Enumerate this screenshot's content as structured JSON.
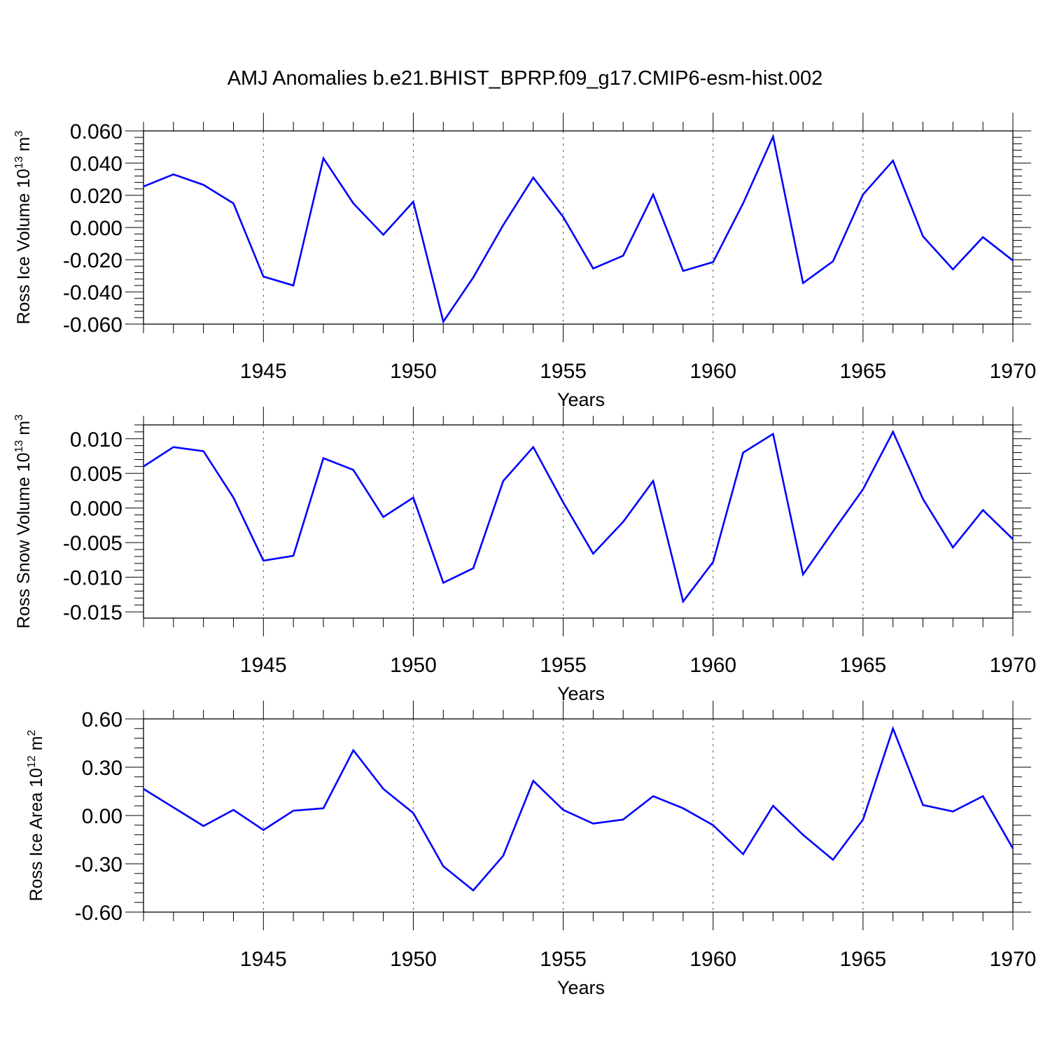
{
  "title": "AMJ Anomalies b.e21.BHIST_BPRP.f09_g17.CMIP6-esm-hist.002",
  "colors": {
    "series": "#0000ff",
    "axis": "#000000",
    "grid": "#555555"
  },
  "chart_data": [
    {
      "type": "line",
      "ylabel": "Ross Ice Volume 10",
      "ylabel_sup": "13",
      "ylabel_unit": " m",
      "ylabel_unit_sup": "3",
      "xlabel": "Years",
      "xlim": [
        1941,
        1970
      ],
      "ylim": [
        -0.06,
        0.06
      ],
      "xticks": [
        1945,
        1950,
        1955,
        1960,
        1965,
        1970
      ],
      "yticks": [
        -0.06,
        -0.04,
        -0.02,
        0.0,
        0.02,
        0.04,
        0.06
      ],
      "ytick_labels": [
        "-0.060",
        "-0.040",
        "-0.020",
        "0.000",
        "0.020",
        "0.040",
        "0.060"
      ],
      "grid": "vertical-dashed",
      "x": [
        1941,
        1942,
        1943,
        1944,
        1945,
        1946,
        1947,
        1948,
        1949,
        1950,
        1951,
        1952,
        1953,
        1954,
        1955,
        1956,
        1957,
        1958,
        1959,
        1960,
        1961,
        1962,
        1963,
        1964,
        1965,
        1966,
        1967,
        1968,
        1969,
        1970
      ],
      "values": [
        0.0255,
        0.033,
        0.0265,
        0.015,
        -0.0305,
        -0.036,
        0.043,
        0.015,
        -0.0045,
        0.016,
        -0.0585,
        -0.031,
        0.0015,
        0.031,
        0.0065,
        -0.0255,
        -0.0175,
        0.0205,
        -0.027,
        -0.0215,
        0.015,
        0.0565,
        -0.0345,
        -0.021,
        0.0205,
        0.0415,
        -0.0055,
        -0.026,
        -0.006,
        -0.0205
      ]
    },
    {
      "type": "line",
      "ylabel": "Ross Snow Volume 10",
      "ylabel_sup": "13",
      "ylabel_unit": " m",
      "ylabel_unit_sup": "3",
      "xlabel": "Years",
      "xlim": [
        1941,
        1970
      ],
      "ylim": [
        -0.0159,
        0.012
      ],
      "xticks": [
        1945,
        1950,
        1955,
        1960,
        1965,
        1970
      ],
      "yticks": [
        -0.015,
        -0.01,
        -0.005,
        0.0,
        0.005,
        0.01
      ],
      "ytick_labels": [
        "-0.015",
        "-0.010",
        "-0.005",
        "0.000",
        "0.005",
        "0.010"
      ],
      "grid": "vertical-dashed",
      "x": [
        1941,
        1942,
        1943,
        1944,
        1945,
        1946,
        1947,
        1948,
        1949,
        1950,
        1951,
        1952,
        1953,
        1954,
        1955,
        1956,
        1957,
        1958,
        1959,
        1960,
        1961,
        1962,
        1963,
        1964,
        1965,
        1966,
        1967,
        1968,
        1969,
        1970
      ],
      "values": [
        0.006,
        0.0088,
        0.0082,
        0.0015,
        -0.0076,
        -0.0069,
        0.0072,
        0.0055,
        -0.0013,
        0.0015,
        -0.0108,
        -0.0087,
        0.0039,
        0.0088,
        0.0008,
        -0.0066,
        -0.002,
        0.0039,
        -0.0135,
        -0.0078,
        0.008,
        0.0107,
        -0.0096,
        -0.0034,
        0.0027,
        0.011,
        0.0013,
        -0.0057,
        -0.0003,
        -0.0045
      ]
    },
    {
      "type": "line",
      "ylabel": "Ross Ice Area 10",
      "ylabel_sup": "12",
      "ylabel_unit": " m",
      "ylabel_unit_sup": "2",
      "xlabel": "Years",
      "xlim": [
        1941,
        1970
      ],
      "ylim": [
        -0.6,
        0.6
      ],
      "xticks": [
        1945,
        1950,
        1955,
        1960,
        1965,
        1970
      ],
      "yticks": [
        -0.6,
        -0.3,
        0.0,
        0.3,
        0.6
      ],
      "ytick_labels": [
        "-0.60",
        "-0.30",
        "0.00",
        "0.30",
        "0.60"
      ],
      "grid": "vertical-dashed",
      "x": [
        1941,
        1942,
        1943,
        1944,
        1945,
        1946,
        1947,
        1948,
        1949,
        1950,
        1951,
        1952,
        1953,
        1954,
        1955,
        1956,
        1957,
        1958,
        1959,
        1960,
        1961,
        1962,
        1963,
        1964,
        1965,
        1966,
        1967,
        1968,
        1969,
        1970
      ],
      "values": [
        0.165,
        0.05,
        -0.065,
        0.035,
        -0.09,
        0.03,
        0.045,
        0.405,
        0.165,
        0.015,
        -0.315,
        -0.465,
        -0.25,
        0.215,
        0.035,
        -0.05,
        -0.025,
        0.12,
        0.045,
        -0.06,
        -0.24,
        0.06,
        -0.12,
        -0.275,
        -0.025,
        0.54,
        0.065,
        0.025,
        0.12,
        -0.205
      ]
    }
  ]
}
